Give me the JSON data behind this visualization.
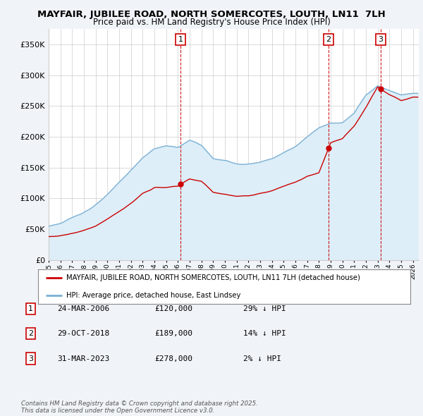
{
  "title": "MAYFAIR, JUBILEE ROAD, NORTH SOMERCOTES, LOUTH, LN11  7LH",
  "subtitle": "Price paid vs. HM Land Registry's House Price Index (HPI)",
  "ytick_values": [
    0,
    50000,
    100000,
    150000,
    200000,
    250000,
    300000,
    350000
  ],
  "ylim": [
    0,
    375000
  ],
  "xlim_start": 1995.0,
  "xlim_end": 2026.5,
  "sales": [
    {
      "date_num": 2006.23,
      "price": 120000,
      "label": "1"
    },
    {
      "date_num": 2018.83,
      "price": 189000,
      "label": "2"
    },
    {
      "date_num": 2023.25,
      "price": 278000,
      "label": "3"
    }
  ],
  "sale_line_color": "#cc0000",
  "hpi_line_color": "#7aafd4",
  "hpi_fill_color": "#ddeef8",
  "background_color": "#f0f4f8",
  "plot_bg_color": "#ffffff",
  "grid_color": "#cccccc",
  "legend_entries": [
    "MAYFAIR, JUBILEE ROAD, NORTH SOMERCOTES, LOUTH, LN11 7LH (detached house)",
    "HPI: Average price, detached house, East Lindsey"
  ],
  "table_rows": [
    {
      "num": "1",
      "date": "24-MAR-2006",
      "price": "£120,000",
      "hpi": "29% ↓ HPI"
    },
    {
      "num": "2",
      "date": "29-OCT-2018",
      "price": "£189,000",
      "hpi": "14% ↓ HPI"
    },
    {
      "num": "3",
      "date": "31-MAR-2023",
      "price": "£278,000",
      "hpi": "2% ↓ HPI"
    }
  ],
  "footnote": "Contains HM Land Registry data © Crown copyright and database right 2025.\nThis data is licensed under the Open Government Licence v3.0.",
  "xtick_years": [
    1995,
    1996,
    1997,
    1998,
    1999,
    2000,
    2001,
    2002,
    2003,
    2004,
    2005,
    2006,
    2007,
    2008,
    2009,
    2010,
    2011,
    2012,
    2013,
    2014,
    2015,
    2016,
    2017,
    2018,
    2019,
    2020,
    2021,
    2022,
    2023,
    2024,
    2025,
    2026
  ],
  "hpi_key_years": [
    1995,
    1996,
    1997,
    1998,
    1999,
    2000,
    2001,
    2002,
    2003,
    2004,
    2005,
    2006,
    2007,
    2008,
    2009,
    2010,
    2011,
    2012,
    2013,
    2014,
    2015,
    2016,
    2017,
    2018,
    2019,
    2020,
    2021,
    2022,
    2023,
    2024,
    2025,
    2026
  ],
  "hpi_key_prices": [
    55000,
    60000,
    68000,
    78000,
    90000,
    105000,
    125000,
    145000,
    165000,
    180000,
    185000,
    182000,
    193000,
    185000,
    163000,
    160000,
    155000,
    155000,
    158000,
    165000,
    175000,
    185000,
    200000,
    215000,
    225000,
    225000,
    240000,
    270000,
    285000,
    278000,
    272000,
    275000
  ],
  "prop_key_years": [
    1995,
    1996,
    1997,
    1998,
    1999,
    2000,
    2001,
    2002,
    2003,
    2004,
    2005,
    2006,
    2007,
    2008,
    2009,
    2010,
    2011,
    2012,
    2013,
    2014,
    2015,
    2016,
    2017,
    2018,
    2019,
    2020,
    2021,
    2022,
    2023,
    2024,
    2025,
    2026
  ],
  "prop_key_prices": [
    38000,
    40000,
    44000,
    49000,
    57000,
    68000,
    80000,
    93000,
    108000,
    118000,
    118000,
    120000,
    132000,
    128000,
    110000,
    107000,
    103000,
    103000,
    106000,
    110000,
    117000,
    124000,
    134000,
    140000,
    189000,
    195000,
    215000,
    245000,
    278000,
    265000,
    255000,
    260000
  ]
}
